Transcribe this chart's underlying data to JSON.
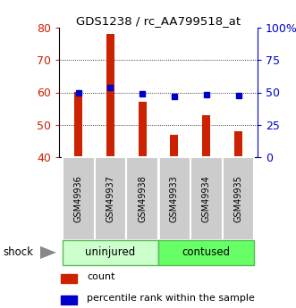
{
  "title": "GDS1238 / rc_AA799518_at",
  "categories": [
    "GSM49936",
    "GSM49937",
    "GSM49938",
    "GSM49933",
    "GSM49934",
    "GSM49935"
  ],
  "bar_bottom": 40,
  "bar_tops": [
    60,
    78,
    57,
    47,
    53,
    48
  ],
  "percentile_values": [
    50,
    54,
    49,
    47,
    48,
    47.5
  ],
  "ylim": [
    40,
    80
  ],
  "right_ylim": [
    0,
    100
  ],
  "right_yticks": [
    0,
    25,
    50,
    75,
    100
  ],
  "right_yticklabels": [
    "0",
    "25",
    "50",
    "75",
    "100%"
  ],
  "left_yticks": [
    40,
    50,
    60,
    70,
    80
  ],
  "grid_yticks": [
    50,
    60,
    70
  ],
  "bar_color": "#cc2200",
  "percentile_color": "#0000cc",
  "left_tick_color": "#cc2200",
  "right_tick_color": "#0000cc",
  "bar_width": 0.25,
  "figsize": [
    3.31,
    3.45
  ],
  "dpi": 100,
  "tick_label_bg": "#cccccc",
  "uninj_color": "#ccffcc",
  "cont_color": "#66ff66",
  "group_edge_color": "#55bb55",
  "legend_count_label": "count",
  "legend_pct_label": "percentile rank within the sample",
  "shock_label": "shock"
}
